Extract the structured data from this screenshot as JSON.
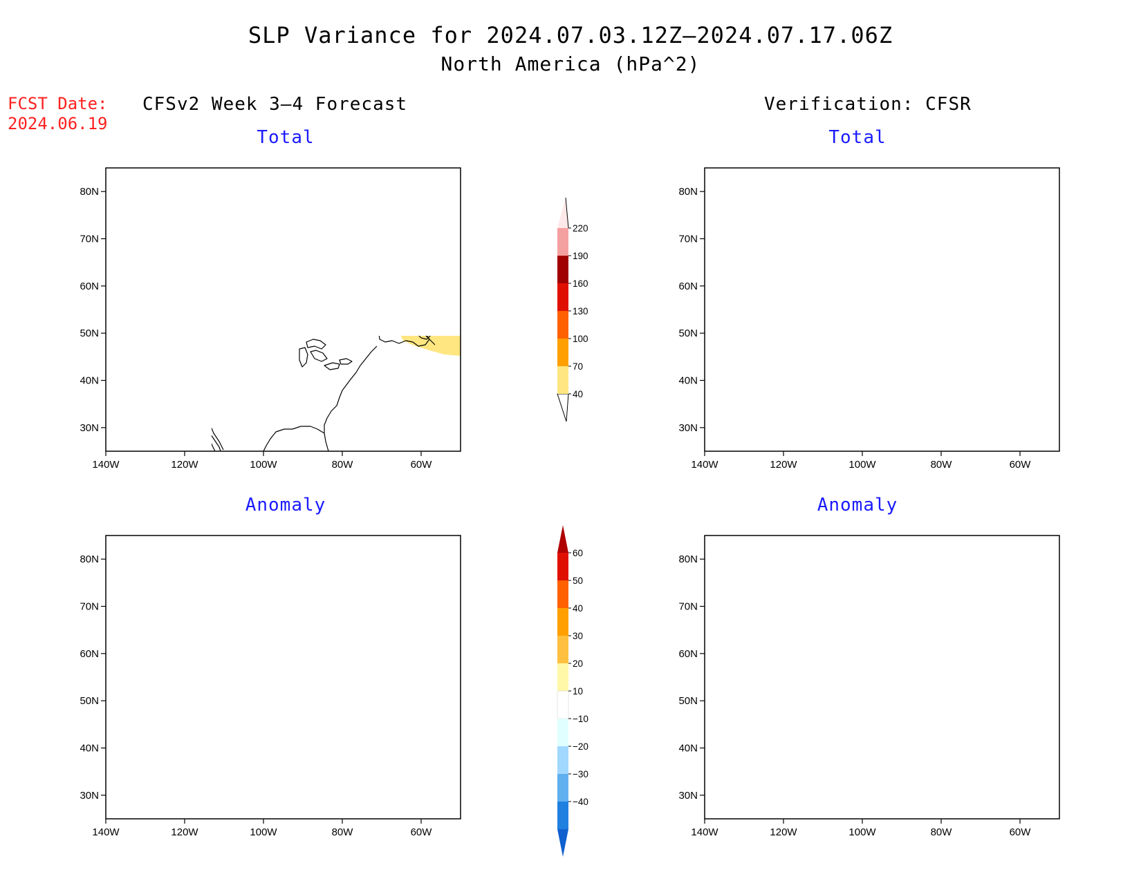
{
  "title": {
    "line1": "SLP Variance for 2024.07.03.12Z–2024.07.17.06Z",
    "line2": "North America (hPa^2)"
  },
  "forecast_date": {
    "label": "FCST Date:",
    "value": "2024.06.19"
  },
  "columns": {
    "left": {
      "heading": "CFSv2 Week 3–4 Forecast"
    },
    "right": {
      "heading": "Verification: CFSR"
    }
  },
  "panels": {
    "fcst_total": {
      "subtitle": "Total"
    },
    "fcst_anomaly": {
      "subtitle": "Anomaly"
    },
    "verif_total": {
      "subtitle": "Total"
    },
    "verif_anomaly": {
      "subtitle": "Anomaly"
    }
  },
  "axes": {
    "lat_labels": [
      "80N",
      "70N",
      "60N",
      "50N",
      "40N",
      "30N"
    ],
    "lat_values": [
      80,
      70,
      60,
      50,
      40,
      30
    ],
    "lon_labels": [
      "140W",
      "120W",
      "100W",
      "80W",
      "60W"
    ],
    "lon_values": [
      -140,
      -120,
      -100,
      -80,
      -60
    ],
    "lon_range": [
      -140,
      -50
    ],
    "lat_range": [
      25,
      85
    ]
  },
  "colorbars": {
    "total": {
      "labels": [
        "40",
        "70",
        "100",
        "130",
        "160",
        "190",
        "220"
      ],
      "colors": [
        "#ffe680",
        "#ffa000",
        "#ff6000",
        "#e01000",
        "#a00000",
        "#f5a0a0",
        "#ffe8e8"
      ]
    },
    "anomaly": {
      "labels": [
        "60",
        "50",
        "40",
        "30",
        "20",
        "10",
        "−10",
        "−20",
        "−30",
        "−40"
      ],
      "colors": [
        "#b00000",
        "#e01000",
        "#ff6000",
        "#ffa000",
        "#ffc040",
        "#fff8a8",
        "#ffffff",
        "#e0ffff",
        "#a0d8ff",
        "#60b0f0",
        "#2080e0",
        "#1060d0"
      ]
    }
  }
}
